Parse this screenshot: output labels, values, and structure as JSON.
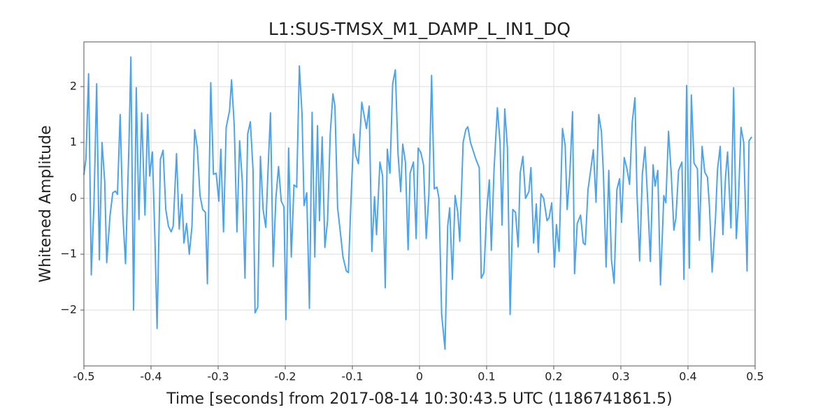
{
  "chart_data": {
    "type": "line",
    "title": "L1:SUS-TMSX_M1_DAMP_L_IN1_DQ",
    "xlabel": "Time [seconds] from 2017-08-14 10:30:43.5 UTC (1186741861.5)",
    "ylabel": "Whitened Amplitude",
    "color": "#4ba4ec",
    "grid": true,
    "xlim": [
      -0.5,
      0.5
    ],
    "ylim": [
      -3,
      2.8
    ],
    "xticks": [
      -0.5,
      -0.4,
      -0.3,
      -0.2,
      -0.1,
      0,
      0.1,
      0.2,
      0.3,
      0.4,
      0.5
    ],
    "yticks": [
      {
        "value": -2,
        "label": "−2"
      },
      {
        "value": -1,
        "label": "−1"
      },
      0,
      1,
      2
    ],
    "x": [
      -0.5,
      -0.497,
      -0.493,
      -0.489,
      -0.485,
      -0.481,
      -0.477,
      -0.473,
      -0.469,
      -0.466,
      -0.461,
      -0.457,
      -0.453,
      -0.45,
      -0.446,
      -0.442,
      -0.438,
      -0.433,
      -0.43,
      -0.426,
      -0.422,
      -0.418,
      -0.414,
      -0.409,
      -0.405,
      -0.402,
      -0.398,
      -0.394,
      -0.391,
      -0.386,
      -0.382,
      -0.378,
      -0.374,
      -0.37,
      -0.367,
      -0.362,
      -0.358,
      -0.354,
      -0.351,
      -0.347,
      -0.343,
      -0.339,
      -0.335,
      -0.331,
      -0.327,
      -0.323,
      -0.319,
      -0.316,
      -0.311,
      -0.307,
      -0.303,
      -0.299,
      -0.296,
      -0.292,
      -0.288,
      -0.283,
      -0.28,
      -0.276,
      -0.272,
      -0.268,
      -0.264,
      -0.26,
      -0.256,
      -0.252,
      -0.248,
      -0.245,
      -0.241,
      -0.237,
      -0.233,
      -0.229,
      -0.225,
      -0.222,
      -0.218,
      -0.214,
      -0.21,
      -0.206,
      -0.202,
      -0.199,
      -0.195,
      -0.191,
      -0.187,
      -0.183,
      -0.179,
      -0.175,
      -0.172,
      -0.168,
      -0.164,
      -0.16,
      -0.156,
      -0.152,
      -0.149,
      -0.145,
      -0.141,
      -0.137,
      -0.133,
      -0.129,
      -0.126,
      -0.122,
      -0.118,
      -0.114,
      -0.109,
      -0.106,
      -0.102,
      -0.098,
      -0.095,
      -0.091,
      -0.086,
      -0.082,
      -0.079,
      -0.075,
      -0.071,
      -0.067,
      -0.064,
      -0.059,
      -0.055,
      -0.051,
      -0.048,
      -0.044,
      -0.04,
      -0.036,
      -0.032,
      -0.028,
      -0.025,
      -0.021,
      -0.017,
      -0.014,
      -0.009,
      -0.005,
      -0.002,
      0.002,
      0.006,
      0.01,
      0.014,
      0.018,
      0.022,
      0.026,
      0.029,
      0.033,
      0.038,
      0.042,
      0.045,
      0.049,
      0.053,
      0.057,
      0.06,
      0.065,
      0.069,
      0.072,
      0.076,
      0.08,
      0.084,
      0.089,
      0.092,
      0.096,
      0.1,
      0.104,
      0.107,
      0.111,
      0.116,
      0.12,
      0.123,
      0.127,
      0.131,
      0.135,
      0.139,
      0.143,
      0.147,
      0.15,
      0.154,
      0.158,
      0.163,
      0.166,
      0.17,
      0.174,
      0.177,
      0.181,
      0.185,
      0.19,
      0.193,
      0.197,
      0.201,
      0.204,
      0.208,
      0.213,
      0.217,
      0.22,
      0.224,
      0.228,
      0.231,
      0.235,
      0.24,
      0.244,
      0.247,
      0.251,
      0.255,
      0.259,
      0.263,
      0.267,
      0.271,
      0.274,
      0.278,
      0.282,
      0.286,
      0.29,
      0.294,
      0.298,
      0.301,
      0.305,
      0.309,
      0.313,
      0.317,
      0.321,
      0.324,
      0.328,
      0.332,
      0.336,
      0.34,
      0.344,
      0.348,
      0.351,
      0.355,
      0.359,
      0.364,
      0.367,
      0.371,
      0.375,
      0.379,
      0.382,
      0.386,
      0.391,
      0.394,
      0.398,
      0.402,
      0.405,
      0.409,
      0.414,
      0.417,
      0.421,
      0.425,
      0.429,
      0.432,
      0.436,
      0.441,
      0.444,
      0.448,
      0.452,
      0.456,
      0.459,
      0.464,
      0.468,
      0.472,
      0.475,
      0.479,
      0.483,
      0.488,
      0.491,
      0.495
    ],
    "values": [
      0.42,
      0.7,
      2.23,
      -1.37,
      -0.1,
      2.05,
      -1.1,
      1.0,
      0.3,
      -1.15,
      -0.3,
      0.1,
      0.13,
      0.07,
      1.5,
      -0.3,
      -1.17,
      0.9,
      2.53,
      -2.0,
      1.98,
      -0.38,
      1.53,
      -0.3,
      1.5,
      0.4,
      0.83,
      -0.8,
      -2.33,
      0.7,
      0.86,
      -0.2,
      -0.5,
      -0.6,
      -0.5,
      0.8,
      -0.55,
      0.07,
      -0.8,
      -0.45,
      -1.0,
      -0.5,
      1.23,
      0.9,
      0.05,
      -0.2,
      -0.25,
      -1.53,
      2.07,
      0.43,
      0.45,
      -0.05,
      0.88,
      -0.6,
      1.27,
      1.57,
      2.12,
      1.3,
      -0.6,
      1.03,
      0.3,
      -1.43,
      1.15,
      1.37,
      0.5,
      -2.05,
      -1.95,
      0.75,
      -0.2,
      -0.52,
      0.7,
      1.53,
      -1.22,
      0.0,
      0.57,
      -0.05,
      -0.15,
      -2.17,
      0.9,
      -1.05,
      0.24,
      0.2,
      2.37,
      1.5,
      -0.13,
      0.1,
      -1.97,
      1.54,
      -1.05,
      1.3,
      -0.4,
      1.1,
      -0.88,
      -0.4,
      1.15,
      1.87,
      1.65,
      -0.17,
      -0.6,
      -1.05,
      -1.3,
      -1.33,
      0.0,
      1.15,
      0.77,
      0.62,
      1.72,
      1.45,
      1.25,
      1.65,
      -0.95,
      0.03,
      -0.65,
      0.65,
      0.4,
      -1.6,
      0.88,
      0.45,
      2.05,
      2.3,
      0.8,
      0.12,
      0.97,
      0.65,
      -0.92,
      0.45,
      0.65,
      -0.72,
      0.9,
      0.82,
      0.6,
      -0.72,
      0.07,
      2.2,
      0.17,
      0.2,
      0.0,
      -2.08,
      -2.7,
      -0.5,
      -0.17,
      -1.45,
      0.05,
      -0.25,
      -0.77,
      1.0,
      1.23,
      1.28,
      1.0,
      0.85,
      0.7,
      0.55,
      -1.43,
      -1.33,
      -0.25,
      0.33,
      -0.93,
      0.5,
      1.62,
      1.0,
      -0.48,
      1.6,
      0.9,
      -2.08,
      -0.2,
      -0.25,
      -0.87,
      0.45,
      0.75,
      0.0,
      0.12,
      0.55,
      -0.8,
      -0.1,
      -0.97,
      0.08,
      0.0,
      -0.4,
      -0.35,
      -0.08,
      -1.23,
      -0.47,
      -0.95,
      1.25,
      0.95,
      -0.2,
      0.45,
      1.55,
      -1.35,
      -0.45,
      -0.3,
      -0.8,
      -0.83,
      0.15,
      0.5,
      0.87,
      -0.07,
      1.5,
      1.2,
      0.45,
      -1.23,
      0.5,
      -1.1,
      -1.52,
      0.15,
      0.35,
      -0.43,
      0.73,
      0.53,
      0.25,
      1.37,
      1.8,
      0.1,
      -1.12,
      0.43,
      0.92,
      -0.05,
      -1.13,
      0.6,
      0.22,
      0.5,
      -1.55,
      0.05,
      -0.08,
      1.2,
      0.45,
      -0.57,
      -0.35,
      0.5,
      0.65,
      -1.45,
      2.02,
      -1.25,
      1.85,
      0.63,
      0.53,
      -0.75,
      0.93,
      0.47,
      0.38,
      -0.15,
      -1.32,
      -0.35,
      0.52,
      0.93,
      -0.65,
      0.4,
      0.83,
      -0.53,
      1.98,
      -0.72,
      -0.1,
      1.27,
      1.0,
      -1.3,
      1.03,
      1.1
    ]
  }
}
